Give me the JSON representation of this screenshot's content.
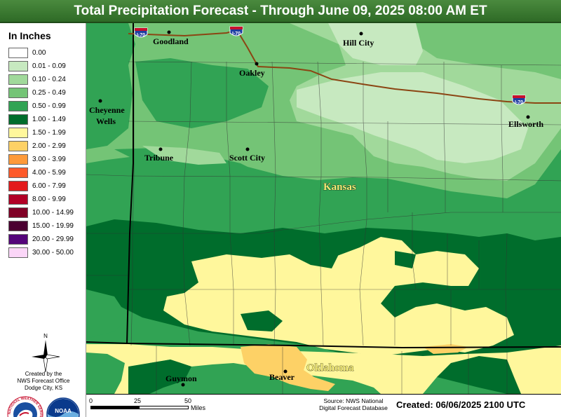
{
  "title": "Total Precipitation Forecast - Through June 09, 2025 08:00 AM ET",
  "legend": {
    "title": "In Inches",
    "items": [
      {
        "label": "0.00",
        "color": "#ffffff"
      },
      {
        "label": "0.01 - 0.09",
        "color": "#c7e9c0"
      },
      {
        "label": "0.10 - 0.24",
        "color": "#a1d99b"
      },
      {
        "label": "0.25 - 0.49",
        "color": "#74c476"
      },
      {
        "label": "0.50 - 0.99",
        "color": "#31a354"
      },
      {
        "label": "1.00 - 1.49",
        "color": "#006d2c"
      },
      {
        "label": "1.50 - 1.99",
        "color": "#fff79c"
      },
      {
        "label": "2.00 - 2.99",
        "color": "#fdd166"
      },
      {
        "label": "3.00 - 3.99",
        "color": "#fd9a3a"
      },
      {
        "label": "4.00 - 5.99",
        "color": "#fd5a2a"
      },
      {
        "label": "6.00 - 7.99",
        "color": "#e31a1c"
      },
      {
        "label": "8.00 - 9.99",
        "color": "#b10026"
      },
      {
        "label": "10.00 - 14.99",
        "color": "#800026"
      },
      {
        "label": "15.00 - 19.99",
        "color": "#4a0030"
      },
      {
        "label": "20.00 - 29.99",
        "color": "#54057a"
      },
      {
        "label": "30.00 - 50.00",
        "color": "#fbd6f8"
      }
    ]
  },
  "compass": {
    "north_label": "N"
  },
  "credit": {
    "line1": "Created by the",
    "line2": "NWS Forecast Office",
    "line3": "Dodge City, KS"
  },
  "logos": {
    "nws_text": "NATIONAL WEATHER SERVICE",
    "noaa_text": "NOAA"
  },
  "map": {
    "states": {
      "kansas": "Kansas",
      "oklahoma": "Oklahoma"
    },
    "highway_shield": "I-70",
    "cities": [
      {
        "name": "Goodland"
      },
      {
        "name": "Hill City"
      },
      {
        "name": "Oakley"
      },
      {
        "name": "Cheyenne"
      },
      {
        "name": "Wells"
      },
      {
        "name": "Ellsworth"
      },
      {
        "name": "Tribune"
      },
      {
        "name": "Scott City"
      },
      {
        "name": "Guymon"
      },
      {
        "name": "Beaver"
      }
    ]
  },
  "footer": {
    "scale": {
      "labels": [
        "0",
        "25",
        "50"
      ],
      "unit": "Miles"
    },
    "source_line1": "Source: NWS National",
    "source_line2": "Digital Forecast Database",
    "created": "Created: 06/06/2025 2100 UTC"
  }
}
